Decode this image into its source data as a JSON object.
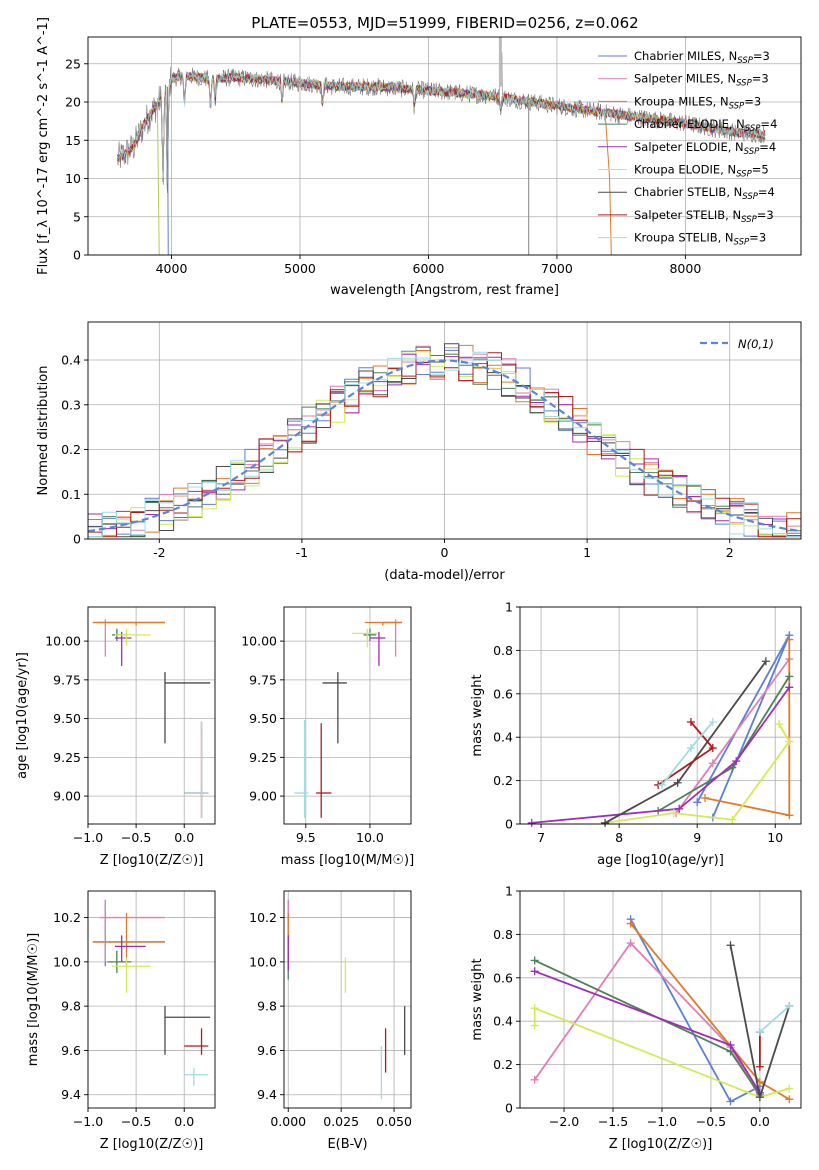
{
  "title": "PLATE=0553, MJD=51999, FIBERID=0256, z=0.062",
  "models": [
    {
      "key": "CM",
      "name": "Chabrier MILES",
      "nssp": "3",
      "color": "#5b7fd6"
    },
    {
      "key": "SM",
      "name": "Salpeter MILES",
      "nssp": "3",
      "color": "#e27db5"
    },
    {
      "key": "KM",
      "name": "Kroupa MILES",
      "nssp": "3",
      "color": "#e07a28"
    },
    {
      "key": "CE",
      "name": "Chabrier ELODIE",
      "nssp": "4",
      "color": "#4f7f5a"
    },
    {
      "key": "SE",
      "name": "Salpeter ELODIE",
      "nssp": "4",
      "color": "#9c2fb5"
    },
    {
      "key": "KE",
      "name": "Kroupa ELODIE",
      "nssp": "5",
      "color": "#d4ea55"
    },
    {
      "key": "CS",
      "name": "Chabrier STELIB",
      "nssp": "4",
      "color": "#4a4a4a"
    },
    {
      "key": "SS",
      "name": "Salpeter STELIB",
      "nssp": "3",
      "color": "#b01c1c"
    },
    {
      "key": "KS",
      "name": "Kroupa STELIB",
      "nssp": "3",
      "color": "#9fdde3"
    }
  ],
  "chart_data": [
    {
      "id": "spectrum",
      "type": "line",
      "xlabel": "wavelength [Angstrom, rest frame]",
      "ylabel": "Flux [f_λ 10^-17 erg cm^-2 s^-1 A^-1]",
      "xlim": [
        3350,
        8900
      ],
      "ylim": [
        0,
        28.5
      ],
      "xticks": [
        4000,
        5000,
        6000,
        7000,
        8000
      ],
      "yticks": [
        0,
        5,
        10,
        15,
        20,
        25
      ],
      "legend": "top-right",
      "continuum": [
        [
          3580,
          12.5
        ],
        [
          3700,
          14
        ],
        [
          3800,
          17.5
        ],
        [
          3900,
          20
        ],
        [
          3960,
          21.5
        ],
        [
          4000,
          23
        ],
        [
          4100,
          23.5
        ],
        [
          4300,
          23
        ],
        [
          4500,
          23.2
        ],
        [
          4800,
          22.8
        ],
        [
          5000,
          22.5
        ],
        [
          5300,
          22
        ],
        [
          5600,
          22
        ],
        [
          6000,
          21.5
        ],
        [
          6500,
          20.8
        ],
        [
          7000,
          19.5
        ],
        [
          7500,
          18.3
        ],
        [
          8000,
          17.2
        ],
        [
          8400,
          16
        ],
        [
          8600,
          15.8
        ]
      ],
      "absorption": [
        [
          3934,
          -12
        ],
        [
          3968,
          -14
        ],
        [
          4101,
          -4
        ],
        [
          4304,
          -4
        ],
        [
          4340,
          -3
        ],
        [
          4861,
          -3
        ],
        [
          5175,
          -3
        ],
        [
          5890,
          -2.5
        ],
        [
          6563,
          -2
        ]
      ]
    },
    {
      "id": "residuals",
      "type": "line",
      "xlabel": "(data-model)/error",
      "ylabel": "Normed distribution",
      "xlim": [
        -2.5,
        2.5
      ],
      "ylim": [
        0,
        0.485
      ],
      "xticks": [
        -2,
        -1,
        0,
        1,
        2
      ],
      "yticks": [
        0,
        0.1,
        0.2,
        0.3,
        0.4
      ],
      "legend": "top-right",
      "reference_label": "N(0,1)"
    },
    {
      "id": "age_vs_Z",
      "type": "scatter",
      "xlabel": "Z [log10(Z/Z☉)]",
      "ylabel": "age  [log10(age/yr)]",
      "xlim": [
        -1.0,
        0.32
      ],
      "ylim": [
        8.82,
        10.22
      ],
      "xticks": [
        -1.0,
        -0.5,
        0.0
      ],
      "xticklabels": [
        "−1.0",
        "−0.5",
        "0.0"
      ],
      "yticks": [
        9.0,
        9.25,
        9.5,
        9.75,
        10.0
      ],
      "yticklabels": [
        "9.00",
        "9.25",
        "9.50",
        "9.75",
        "10.00"
      ],
      "points": [
        {
          "m": "CM",
          "x": -0.5,
          "x0": -0.95,
          "x1": -0.2,
          "y": 10.12,
          "y0": 10.12,
          "y1": 10.12
        },
        {
          "m": "SM",
          "x": -0.82,
          "x0": -0.9,
          "x1": -0.2,
          "y": 10.12,
          "y0": 9.9,
          "y1": 10.14
        },
        {
          "m": "KM",
          "x": -0.5,
          "x0": -0.95,
          "x1": -0.2,
          "y": 10.12,
          "y0": 10.1,
          "y1": 10.12
        },
        {
          "m": "CE",
          "x": -0.7,
          "x0": -0.75,
          "x1": -0.6,
          "y": 10.04,
          "y0": 10.0,
          "y1": 10.08
        },
        {
          "m": "SE",
          "x": -0.65,
          "x0": -0.72,
          "x1": -0.55,
          "y": 10.02,
          "y0": 9.84,
          "y1": 10.06
        },
        {
          "m": "KE",
          "x": -0.6,
          "x0": -0.72,
          "x1": -0.35,
          "y": 10.04,
          "y0": 9.97,
          "y1": 10.08
        },
        {
          "m": "CS",
          "x": -0.2,
          "x0": -0.2,
          "x1": 0.27,
          "y": 9.73,
          "y0": 9.34,
          "y1": 9.8
        },
        {
          "m": "SS",
          "x": 0.18,
          "x0": 0.0,
          "x1": 0.25,
          "y": 9.02,
          "y0": 8.86,
          "y1": 9.48
        },
        {
          "m": "KS",
          "x": 0.18,
          "x0": 0.0,
          "x1": 0.25,
          "y": 9.02,
          "y0": 8.86,
          "y1": 9.48
        }
      ]
    },
    {
      "id": "age_vs_mass",
      "type": "scatter",
      "xlabel": "mass [log10(M/M☉)]",
      "ylabel": "",
      "xlim": [
        9.33,
        10.32
      ],
      "ylim": [
        8.82,
        10.22
      ],
      "xticks": [
        9.5,
        10.0
      ],
      "xticklabels": [
        "9.5",
        "10.0"
      ],
      "yticks": [
        9.0,
        9.25,
        9.5,
        9.75,
        10.0
      ],
      "yticklabels": [
        "9.00",
        "9.25",
        "9.50",
        "9.75",
        "10.00"
      ],
      "points": [
        {
          "m": "CM",
          "x": 10.2,
          "x0": 10.1,
          "x1": 10.25,
          "y": 10.12,
          "y0": 10.12,
          "y1": 10.12
        },
        {
          "m": "SM",
          "x": 10.2,
          "x0": 10.0,
          "x1": 10.25,
          "y": 10.12,
          "y0": 9.9,
          "y1": 10.14
        },
        {
          "m": "KM",
          "x": 10.1,
          "x0": 9.96,
          "x1": 10.25,
          "y": 10.12,
          "y0": 10.1,
          "y1": 10.12
        },
        {
          "m": "CE",
          "x": 10.0,
          "x0": 9.95,
          "x1": 10.05,
          "y": 10.04,
          "y0": 10.0,
          "y1": 10.08
        },
        {
          "m": "SE",
          "x": 10.07,
          "x0": 10.0,
          "x1": 10.12,
          "y": 10.02,
          "y0": 9.84,
          "y1": 10.06
        },
        {
          "m": "KE",
          "x": 9.98,
          "x0": 9.86,
          "x1": 10.06,
          "y": 10.05,
          "y0": 9.96,
          "y1": 10.08
        },
        {
          "m": "CS",
          "x": 9.75,
          "x0": 9.63,
          "x1": 9.82,
          "y": 9.73,
          "y0": 9.34,
          "y1": 9.8
        },
        {
          "m": "SS",
          "x": 9.62,
          "x0": 9.58,
          "x1": 9.7,
          "y": 9.02,
          "y0": 8.86,
          "y1": 9.47
        },
        {
          "m": "KS",
          "x": 9.49,
          "x0": 9.41,
          "x1": 9.52,
          "y": 9.02,
          "y0": 8.86,
          "y1": 9.49
        }
      ]
    },
    {
      "id": "weight_vs_age",
      "type": "line",
      "xlabel": "age  [log10(age/yr)]",
      "ylabel": "mass weight",
      "xlim": [
        6.73,
        10.33
      ],
      "ylim": [
        0,
        1
      ],
      "xticks": [
        7,
        8,
        9,
        10
      ],
      "yticks": [
        0,
        0.2,
        0.4,
        0.6,
        0.8,
        1.0
      ],
      "series": [
        {
          "m": "CM",
          "x": [
            9.2,
            10.18,
            9.0
          ],
          "y": [
            0.03,
            0.87,
            0.1
          ]
        },
        {
          "m": "SM",
          "x": [
            10.18,
            9.2,
            8.73
          ],
          "y": [
            0.76,
            0.28,
            0.05
          ]
        },
        {
          "m": "KM",
          "x": [
            10.18,
            10.18,
            9.1
          ],
          "y": [
            0.85,
            0.04,
            0.12
          ]
        },
        {
          "m": "CE",
          "x": [
            10.18,
            9.45,
            8.5
          ],
          "y": [
            0.68,
            0.26,
            0.06
          ]
        },
        {
          "m": "SE",
          "x": [
            10.18,
            9.5,
            8.77,
            6.88
          ],
          "y": [
            0.63,
            0.29,
            0.07,
            0.005
          ]
        },
        {
          "m": "KE",
          "x": [
            10.05,
            10.18,
            9.45,
            8.7,
            7.82
          ],
          "y": [
            0.46,
            0.38,
            0.02,
            0.05,
            0.005
          ]
        },
        {
          "m": "CS",
          "x": [
            9.88,
            8.75,
            7.82
          ],
          "y": [
            0.75,
            0.19,
            0.005
          ]
        },
        {
          "m": "SS",
          "x": [
            8.92,
            9.2,
            8.5
          ],
          "y": [
            0.47,
            0.35,
            0.18
          ]
        },
        {
          "m": "KS",
          "x": [
            9.2,
            8.92,
            8.55
          ],
          "y": [
            0.47,
            0.35,
            0.18
          ]
        }
      ]
    },
    {
      "id": "mass_vs_Z",
      "type": "scatter",
      "xlabel": "Z [log10(Z/Z☉)]",
      "ylabel": "mass [log10(M/M☉)]",
      "xlim": [
        -1.0,
        0.32
      ],
      "ylim": [
        9.34,
        10.32
      ],
      "xticks": [
        -1.0,
        -0.5,
        0.0
      ],
      "xticklabels": [
        "−1.0",
        "−0.5",
        "0.0"
      ],
      "yticks": [
        9.4,
        9.6,
        9.8,
        10.0,
        10.2
      ],
      "yticklabels": [
        "9.4",
        "9.6",
        "9.8",
        "10.0",
        "10.2"
      ],
      "points": [
        {
          "m": "CM",
          "x": -0.82,
          "x0": -0.95,
          "x1": -0.2,
          "y": 10.09,
          "y0": 9.98,
          "y1": 10.28
        },
        {
          "m": "SM",
          "x": -0.82,
          "x0": -0.88,
          "x1": -0.2,
          "y": 10.2,
          "y0": 10.0,
          "y1": 10.28
        },
        {
          "m": "KM",
          "x": -0.6,
          "x0": -0.95,
          "x1": -0.2,
          "y": 10.09,
          "y0": 9.98,
          "y1": 10.22
        },
        {
          "m": "CE",
          "x": -0.7,
          "x0": -0.8,
          "x1": -0.55,
          "y": 10.0,
          "y0": 9.95,
          "y1": 10.05
        },
        {
          "m": "SE",
          "x": -0.65,
          "x0": -0.72,
          "x1": -0.4,
          "y": 10.07,
          "y0": 10.0,
          "y1": 10.12
        },
        {
          "m": "KE",
          "x": -0.6,
          "x0": -0.75,
          "x1": -0.35,
          "y": 9.98,
          "y0": 9.86,
          "y1": 10.02
        },
        {
          "m": "CS",
          "x": -0.2,
          "x0": -0.2,
          "x1": 0.27,
          "y": 9.75,
          "y0": 9.58,
          "y1": 9.8
        },
        {
          "m": "SS",
          "x": 0.18,
          "x0": 0.0,
          "x1": 0.25,
          "y": 9.62,
          "y0": 9.58,
          "y1": 9.7
        },
        {
          "m": "KS",
          "x": 0.1,
          "x0": 0.0,
          "x1": 0.25,
          "y": 9.49,
          "y0": 9.44,
          "y1": 9.52
        }
      ]
    },
    {
      "id": "mass_vs_EBV",
      "type": "scatter",
      "xlabel": "E(B-V)",
      "ylabel": "",
      "xlim": [
        -0.002,
        0.058
      ],
      "ylim": [
        9.34,
        10.32
      ],
      "xticks": [
        0.0,
        0.025,
        0.05
      ],
      "xticklabels": [
        "0.000",
        "0.025",
        "0.050"
      ],
      "yticks": [
        9.4,
        9.6,
        9.8,
        10.0,
        10.2
      ],
      "yticklabels": [
        "9.4",
        "9.6",
        "9.8",
        "10.0",
        "10.2"
      ],
      "points": [
        {
          "m": "CM",
          "x": 0.0,
          "x0": 0.0,
          "x1": 0.0,
          "y": 10.09,
          "y0": 9.98,
          "y1": 10.28
        },
        {
          "m": "SM",
          "x": 0.0,
          "x0": 0.0,
          "x1": 0.0,
          "y": 10.2,
          "y0": 10.0,
          "y1": 10.28
        },
        {
          "m": "KM",
          "x": 0.0,
          "x0": 0.0,
          "x1": 0.0,
          "y": 10.09,
          "y0": 9.98,
          "y1": 10.22
        },
        {
          "m": "CE",
          "x": 0.0,
          "x0": 0.0,
          "x1": 0.0,
          "y": 10.0,
          "y0": 9.92,
          "y1": 10.05
        },
        {
          "m": "SE",
          "x": 0.0,
          "x0": 0.0,
          "x1": 0.0,
          "y": 10.07,
          "y0": 9.96,
          "y1": 10.12
        },
        {
          "m": "KE",
          "x": 0.027,
          "x0": 0.027,
          "x1": 0.027,
          "y": 9.98,
          "y0": 9.86,
          "y1": 10.02
        },
        {
          "m": "CS",
          "x": 0.055,
          "x0": 0.055,
          "x1": 0.055,
          "y": 9.75,
          "y0": 9.58,
          "y1": 9.8
        },
        {
          "m": "SS",
          "x": 0.046,
          "x0": 0.046,
          "x1": 0.046,
          "y": 9.62,
          "y0": 9.5,
          "y1": 9.7
        },
        {
          "m": "KS",
          "x": 0.044,
          "x0": 0.044,
          "x1": 0.044,
          "y": 9.49,
          "y0": 9.38,
          "y1": 9.62
        }
      ]
    },
    {
      "id": "weight_vs_Z",
      "type": "line",
      "xlabel": "Z [log10(Z/Z☉)]",
      "ylabel": "mass weight",
      "xlim": [
        -2.45,
        0.42
      ],
      "ylim": [
        0,
        1
      ],
      "xticks": [
        -2.0,
        -1.5,
        -1.0,
        -0.5,
        0.0
      ],
      "xticklabels": [
        "−2.0",
        "−1.5",
        "−1.0",
        "−0.5",
        "0.0"
      ],
      "yticks": [
        0,
        0.2,
        0.4,
        0.6,
        0.8,
        1.0
      ],
      "series": [
        {
          "m": "CM",
          "x": [
            -1.32,
            -0.3,
            0.0
          ],
          "y": [
            0.87,
            0.03,
            0.1
          ]
        },
        {
          "m": "SM",
          "x": [
            -2.3,
            -1.32,
            -0.3,
            0.0
          ],
          "y": [
            0.13,
            0.76,
            0.28,
            0.05
          ]
        },
        {
          "m": "KM",
          "x": [
            -1.32,
            0.0,
            0.3
          ],
          "y": [
            0.85,
            0.12,
            0.04
          ]
        },
        {
          "m": "CE",
          "x": [
            -2.3,
            -0.3,
            0.0
          ],
          "y": [
            0.68,
            0.26,
            0.06
          ]
        },
        {
          "m": "SE",
          "x": [
            -2.3,
            -0.3,
            0.0
          ],
          "y": [
            0.63,
            0.29,
            0.07
          ]
        },
        {
          "m": "KE",
          "x": [
            -2.3,
            -2.3,
            0.0,
            0.3
          ],
          "y": [
            0.38,
            0.46,
            0.05,
            0.09
          ]
        },
        {
          "m": "CS",
          "x": [
            -0.3,
            0.0,
            0.3
          ],
          "y": [
            0.75,
            0.05,
            0.47
          ]
        },
        {
          "m": "SS",
          "x": [
            0.0,
            0.0
          ],
          "y": [
            0.19,
            0.35
          ]
        },
        {
          "m": "KS",
          "x": [
            0.0,
            0.3
          ],
          "y": [
            0.35,
            0.47
          ]
        }
      ]
    }
  ]
}
